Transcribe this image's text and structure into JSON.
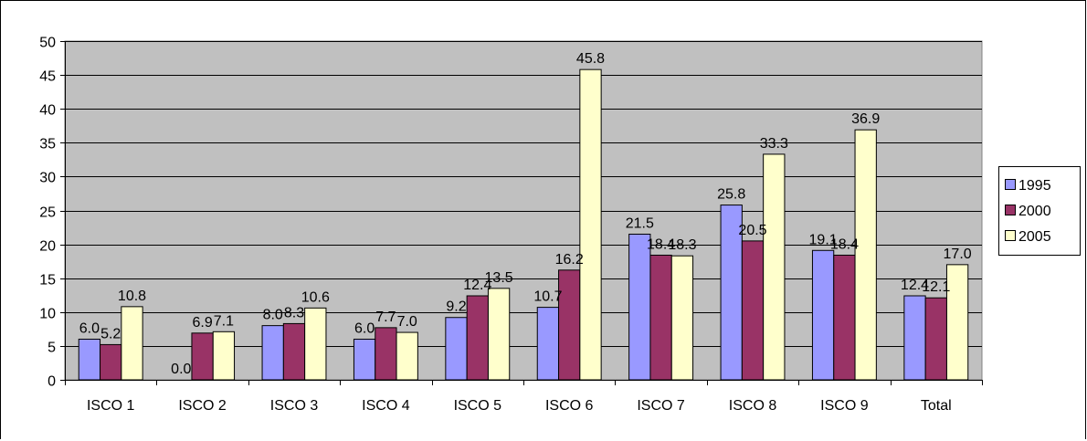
{
  "chart_data": {
    "type": "bar",
    "categories": [
      "ISCO 1",
      "ISCO 2",
      "ISCO 3",
      "ISCO 4",
      "ISCO 5",
      "ISCO 6",
      "ISCO 7",
      "ISCO 8",
      "ISCO 9",
      "Total"
    ],
    "series": [
      {
        "name": "1995",
        "color": "#9999ff",
        "values": [
          6.0,
          0.0,
          8.0,
          6.0,
          9.2,
          10.7,
          21.5,
          25.8,
          19.1,
          12.4
        ]
      },
      {
        "name": "2000",
        "color": "#993366",
        "values": [
          5.2,
          6.9,
          8.3,
          7.7,
          12.4,
          16.2,
          18.4,
          20.5,
          18.4,
          12.1
        ]
      },
      {
        "name": "2005",
        "color": "#ffffcc",
        "values": [
          10.8,
          7.1,
          10.6,
          7.0,
          13.5,
          45.8,
          18.3,
          33.3,
          36.9,
          17.0
        ]
      }
    ],
    "value_labels": [
      [
        "6.0",
        "0.0",
        "8.0",
        "6.0",
        "9.2",
        "10.7",
        "21.5",
        "25.8",
        "19.1",
        "12.4"
      ],
      [
        "5.2",
        "6.9",
        "8.3",
        "7.7",
        "12.4",
        "16.2",
        "18.4",
        "20.5",
        "18.4",
        "12.1"
      ],
      [
        "10.8",
        "7.1",
        "10.6",
        "7.0",
        "13.5",
        "45.8",
        "18.3",
        "33.3",
        "36.9",
        "17.0"
      ]
    ],
    "y_ticks": [
      "0",
      "5",
      "10",
      "15",
      "20",
      "25",
      "30",
      "35",
      "40",
      "45",
      "50"
    ],
    "ylim": [
      0,
      50
    ],
    "grid": true,
    "plot_background": "#c0c0c0",
    "legend_position": "right"
  }
}
